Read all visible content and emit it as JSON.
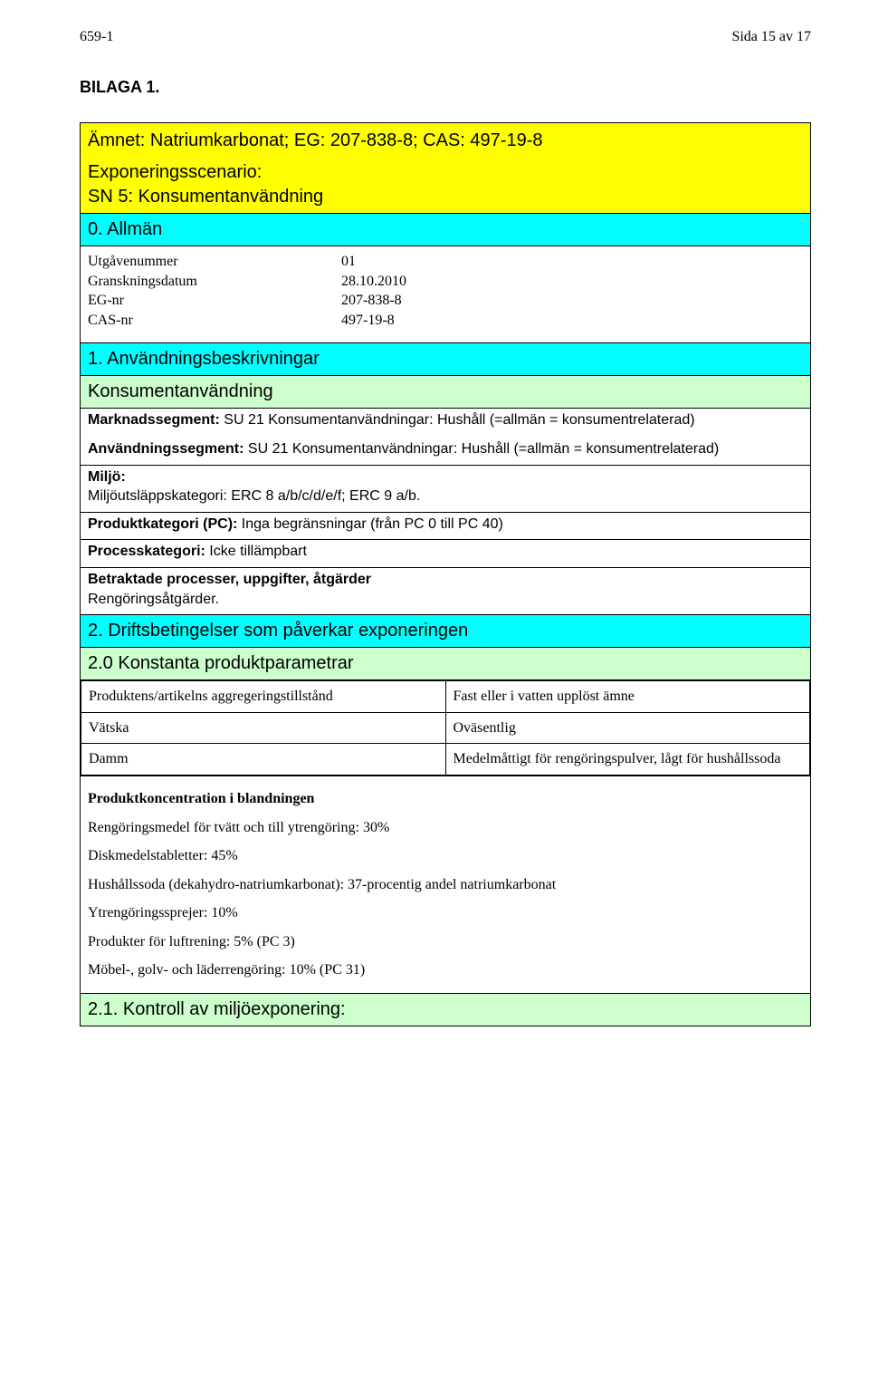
{
  "header": {
    "doc_ref": "659-1",
    "page_of": "Sida 15 av 17"
  },
  "bilaga": "BILAGA 1.",
  "block_title": {
    "line1": "Ämnet: Natriumkarbonat; EG: 207-838-8; CAS: 497-19-8",
    "line2a": "Exponeringsscenario:",
    "line2b": "SN 5: Konsumentanvändning"
  },
  "sec0": {
    "heading": "0. Allmän",
    "rows": [
      {
        "k": "Utgåvenummer",
        "v": "01"
      },
      {
        "k": "Granskningsdatum",
        "v": "28.10.2010"
      },
      {
        "k": "EG-nr",
        "v": "207-838-8"
      },
      {
        "k": "CAS-nr",
        "v": "497-19-8"
      }
    ]
  },
  "sec1": {
    "heading": "1. Användningsbeskrivningar",
    "sub": "Konsumentanvändning",
    "market_line1": "Marknadssegment: SU 21 Konsumentanvändningar: Hushåll (=allmän = konsumentrelaterad)",
    "market_label1": "Marknadssegment:",
    "use_line2": "Användningssegment: SU 21 Konsumentanvändningar: Hushåll (=allmän = konsumentrelaterad)",
    "use_label2": "Användningssegment:",
    "miljo_label": "Miljö:",
    "miljo_text": "Miljöutsläppskategori: ERC 8 a/b/c/d/e/f; ERC 9 a/b.",
    "prodkat_label": "Produktkategori (PC):",
    "prodkat_text": " Inga begränsningar (från PC 0 till PC 40)",
    "process_label": "Processkategori:",
    "process_text": " Icke tillämpbart",
    "betrakt_label": "Betraktade processer, uppgifter, åtgärder",
    "betrakt_text": "Rengöringsåtgärder."
  },
  "sec2": {
    "heading": "2. Driftsbetingelser som påverkar exponeringen",
    "sub": "2.0 Konstanta produktparametrar",
    "rows": [
      {
        "l": "Produktens/artikelns aggregeringstillstånd",
        "r": "Fast eller i vatten upplöst ämne"
      },
      {
        "l": "Vätska",
        "r": "Oväsentlig"
      },
      {
        "l": "Damm",
        "r": "Medelmåttigt för rengöringspulver, lågt för hushållssoda"
      }
    ],
    "konc_heading": "Produktkoncentration i blandningen",
    "konc_lines": [
      "Rengöringsmedel för tvätt och till ytrengöring: 30%",
      "Diskmedelstabletter: 45%",
      "Hushållssoda (dekahydro-natriumkarbonat): 37-procentig andel natriumkarbonat",
      "Ytrengöringssprejer: 10%",
      "Produkter för luftrening: 5% (PC 3)",
      "Möbel-, golv- och läderrengöring: 10% (PC 31)"
    ],
    "s21": "2.1. Kontroll av miljöexponering:"
  },
  "colors": {
    "yellow": "#ffff00",
    "cyan": "#00ffff",
    "mint": "#ccffcc",
    "border": "#000000",
    "text": "#000000",
    "bg": "#ffffff"
  }
}
